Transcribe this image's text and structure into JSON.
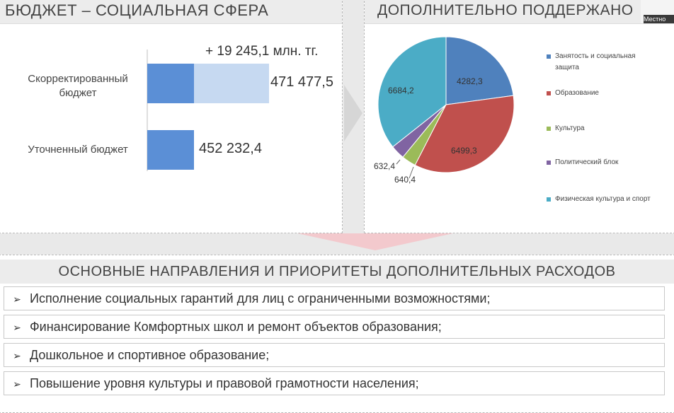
{
  "left_panel": {
    "title": "БЮДЖЕТ – СОЦИАЛЬНАЯ СФЕРА"
  },
  "right_panel": {
    "title": "ДОПОЛНИТЕЛЬНО ПОДДЕРЖАНО",
    "badge_label": "Местно"
  },
  "chart_data": [
    {
      "type": "bar",
      "orientation": "horizontal",
      "categories": [
        "Скорректированный бюджет",
        "Уточненный бюджет"
      ],
      "values": [
        471477.5,
        452232.4
      ],
      "value_labels": [
        "471 477,5",
        "452 232,4"
      ],
      "increase_value": 19245.1,
      "increase_label": "+ 19 245,1 млн. тг.",
      "colors": {
        "base": "#5b8fd6",
        "increase": "#c6d9f1"
      }
    },
    {
      "type": "pie",
      "slices": [
        {
          "label": "Занятость и социальная защита",
          "value": 4282.3,
          "value_label": "4282,3",
          "color": "#4f81bd"
        },
        {
          "label": "Образование",
          "value": 6499.3,
          "value_label": "6499,3",
          "color": "#c0504d"
        },
        {
          "label": "Культура",
          "value": 640.4,
          "value_label": "640,4",
          "color": "#9bbb59"
        },
        {
          "label": "Политический блок",
          "value": 632.4,
          "value_label": "632,4",
          "color": "#8064a2"
        },
        {
          "label": "Физическая культура и спорт",
          "value": 6684.2,
          "value_label": "6684,2",
          "color": "#4bacc6"
        }
      ],
      "legend_position": "right"
    }
  ],
  "bottom": {
    "title": "ОСНОВНЫЕ НАПРАВЛЕНИЯ И ПРИОРИТЕТЫ ДОПОЛНИТЕЛЬНЫХ  РАСХОДОВ",
    "marker": "➢",
    "items": [
      "Исполнение социальных гарантий для лиц с ограниченными возможностями;",
      "Финансирование Комфортных школ и ремонт объектов образования;",
      "Дошкольное и спортивное образование;",
      "Повышение уровня культуры и правовой грамотности населения;"
    ]
  }
}
